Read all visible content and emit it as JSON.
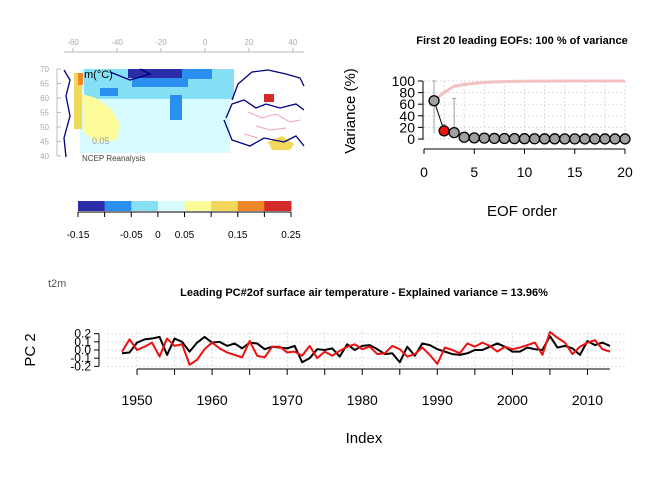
{
  "map_panel": {
    "lon_ticks": [
      "-60",
      "-40",
      "-20",
      "0",
      "20",
      "40"
    ],
    "lat_ticks": [
      "70",
      "65",
      "60",
      "55",
      "50",
      "45",
      "40"
    ],
    "unit_label": "m(°C)",
    "inner_label": "0.05",
    "credit": "NCEP Reanalysis",
    "colorbar": {
      "colors": [
        "#2c2ca8",
        "#2b8ff0",
        "#85dff5",
        "#d8fbff",
        "#fbfb9a",
        "#f2d85a",
        "#f0862a",
        "#d42a2a"
      ],
      "tick_labels": [
        "-0.15",
        "-0.05",
        "0",
        "0.05",
        "0.15",
        "0.25"
      ],
      "tick_values": [
        -0.15,
        -0.05,
        0,
        0.05,
        0.15,
        0.25
      ],
      "range": [
        -0.15,
        0.25
      ]
    }
  },
  "variable_label": "t2m",
  "chart_data": [
    {
      "type": "scatter",
      "title": "First 20 leading EOFs:  100 % of variance",
      "xlabel": "EOF order",
      "ylabel": "Variance (%)",
      "xlim": [
        0,
        20
      ],
      "ylim": [
        0,
        100
      ],
      "x_ticks": [
        0,
        5,
        10,
        15,
        20
      ],
      "y_ticks": [
        0,
        20,
        40,
        60,
        80,
        100
      ],
      "grid": true,
      "highlight_index": 2,
      "x": [
        1,
        2,
        3,
        4,
        5,
        6,
        7,
        8,
        9,
        10,
        11,
        12,
        13,
        14,
        15,
        16,
        17,
        18,
        19,
        20
      ],
      "variance": [
        66,
        14,
        11,
        3,
        2,
        1.5,
        1,
        0.8,
        0.6,
        0.5,
        0.4,
        0.3,
        0.3,
        0.2,
        0.2,
        0.1,
        0.1,
        0.1,
        0.1,
        0.1
      ],
      "error_low": [
        10,
        6,
        5,
        1,
        1,
        0.5,
        0.5,
        0.3,
        0.2,
        0.2,
        0.1,
        0.1,
        0.1,
        0.1,
        0.1,
        0,
        0,
        0,
        0,
        0
      ],
      "error_high": [
        100,
        25,
        70,
        6,
        4,
        3,
        2,
        1.5,
        1.2,
        1,
        0.8,
        0.6,
        0.5,
        0.4,
        0.4,
        0.3,
        0.2,
        0.2,
        0.2,
        0.2
      ],
      "cumulative": [
        66,
        80,
        91,
        94,
        96,
        97.5,
        98.5,
        99,
        99.4,
        99.6,
        99.7,
        99.8,
        99.85,
        99.9,
        99.92,
        99.94,
        99.96,
        99.98,
        99.99,
        100
      ],
      "colors": {
        "points": "#a0a0a0",
        "highlight": "#ee1111",
        "cumulative": "#f4c0c0",
        "errorbar": "#a0a0a0"
      }
    },
    {
      "type": "line",
      "title": "Leading PC#2of surface air temperature - Explained variance = 13.96%",
      "xlabel": "Index",
      "ylabel": "PC 2",
      "xlim": [
        1946,
        2015
      ],
      "ylim": [
        -0.22,
        0.22
      ],
      "x_ticks": [
        1950,
        1960,
        1970,
        1980,
        1990,
        2000,
        2010
      ],
      "y_ticks": [
        -0.2,
        -0.1,
        0.0,
        0.1,
        0.2
      ],
      "y_tick_labels": [
        "-0.2",
        "-0.1",
        "0.0",
        "0.1",
        "0.2"
      ],
      "grid": true,
      "x": [
        1948,
        1949,
        1950,
        1951,
        1952,
        1953,
        1954,
        1955,
        1956,
        1957,
        1958,
        1959,
        1960,
        1961,
        1962,
        1963,
        1964,
        1965,
        1966,
        1967,
        1968,
        1969,
        1970,
        1971,
        1972,
        1973,
        1974,
        1975,
        1976,
        1977,
        1978,
        1979,
        1980,
        1981,
        1982,
        1983,
        1984,
        1985,
        1986,
        1987,
        1988,
        1989,
        1990,
        1991,
        1992,
        1993,
        1994,
        1995,
        1996,
        1997,
        1998,
        1999,
        2000,
        2001,
        2002,
        2003,
        2004,
        2005,
        2006,
        2007,
        2008,
        2009,
        2010,
        2011,
        2012,
        2013
      ],
      "series": [
        {
          "color": "#000000",
          "values": [
            -0.04,
            -0.03,
            0.09,
            0.13,
            0.14,
            0.16,
            -0.06,
            0.14,
            0.1,
            -0.02,
            0.09,
            0.16,
            0.09,
            0.1,
            0.05,
            0.08,
            0.02,
            0.09,
            0.08,
            0.01,
            0.04,
            0.03,
            0.02,
            0.05,
            -0.15,
            -0.1,
            0.01,
            0.0,
            0.02,
            -0.08,
            0.07,
            0.0,
            0.05,
            0.06,
            0.01,
            -0.05,
            -0.04,
            -0.15,
            0.04,
            -0.07,
            0.08,
            0.06,
            0.01,
            -0.02,
            -0.05,
            -0.06,
            -0.04,
            0.0,
            0.0,
            0.04,
            0.08,
            0.04,
            -0.02,
            -0.02,
            0.03,
            0.01,
            0.0,
            0.17,
            0.03,
            0.05,
            0.02,
            -0.06,
            0.11,
            0.06,
            0.09,
            0.05
          ]
        },
        {
          "color": "#ee1111",
          "values": [
            -0.02,
            0.13,
            0.0,
            0.04,
            0.09,
            -0.08,
            0.14,
            0.05,
            0.07,
            -0.18,
            -0.12,
            0.01,
            0.09,
            0.02,
            -0.03,
            -0.06,
            -0.09,
            0.11,
            -0.07,
            -0.09,
            0.04,
            0.04,
            -0.03,
            -0.02,
            -0.07,
            0.05,
            -0.1,
            -0.02,
            -0.07,
            -0.01,
            0.04,
            0.07,
            0.01,
            0.04,
            -0.05,
            -0.04,
            0.05,
            0.01,
            -0.08,
            -0.05,
            0.03,
            -0.06,
            -0.17,
            0.03,
            0.0,
            -0.04,
            0.08,
            0.04,
            0.09,
            0.05,
            -0.02,
            0.04,
            0.01,
            0.03,
            0.06,
            0.09,
            -0.06,
            0.22,
            0.15,
            0.09,
            -0.05,
            0.04,
            0.09,
            0.12,
            0.01,
            -0.02
          ]
        }
      ]
    }
  ]
}
